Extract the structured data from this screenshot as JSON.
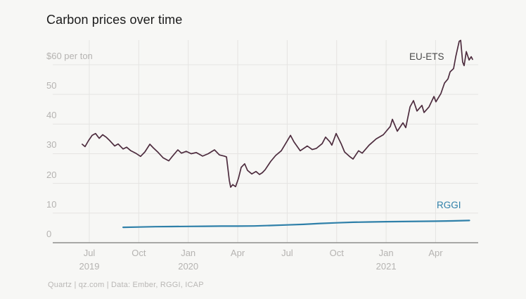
{
  "title": "Carbon prices over time",
  "footer": "Quartz | qz.com | Data: Ember, RGGI, ICAP",
  "colors": {
    "background": "#f7f7f5",
    "grid": "#e5e4e2",
    "zero_axis": "#8e8e8c",
    "tick_text": "#b5b3b1",
    "title_text": "#1b1b1b",
    "footer_text": "#b9b7b5"
  },
  "chart_data": {
    "type": "line",
    "title": "Carbon prices over time",
    "ylabel": "$ per ton",
    "xlabel": "",
    "grid": true,
    "legend_position": "inline-labels-at-line-ends",
    "x_axis": {
      "description": "t = months since Jul 2019 tick",
      "ticks": [
        {
          "t": 0,
          "month": "Jul",
          "year": "2019"
        },
        {
          "t": 3,
          "month": "Oct",
          "year": ""
        },
        {
          "t": 6,
          "month": "Jan",
          "year": "2020"
        },
        {
          "t": 9,
          "month": "Apr",
          "year": ""
        },
        {
          "t": 12,
          "month": "Jul",
          "year": ""
        },
        {
          "t": 15,
          "month": "Oct",
          "year": ""
        },
        {
          "t": 18,
          "month": "Jan",
          "year": "2021"
        },
        {
          "t": 21,
          "month": "Apr",
          "year": ""
        }
      ],
      "range_months": [
        -0.6,
        23.6
      ]
    },
    "y_axis": {
      "ticks": [
        {
          "v": 0,
          "label": "0"
        },
        {
          "v": 10,
          "label": "10"
        },
        {
          "v": 20,
          "label": "20"
        },
        {
          "v": 30,
          "label": "30"
        },
        {
          "v": 40,
          "label": "40"
        },
        {
          "v": 50,
          "label": "50"
        },
        {
          "v": 60,
          "label": "$60 per ton"
        }
      ],
      "range": [
        0,
        60
      ]
    },
    "series": [
      {
        "name": "EU-ETS",
        "color": "#4d2c3e",
        "label_color": "#4b4b4b",
        "width": 1.7,
        "points": [
          [
            -0.43,
            33.2
          ],
          [
            -0.26,
            32.4
          ],
          [
            -0.04,
            34.5
          ],
          [
            0.17,
            36.2
          ],
          [
            0.38,
            36.8
          ],
          [
            0.6,
            35.2
          ],
          [
            0.81,
            36.4
          ],
          [
            1.02,
            35.6
          ],
          [
            1.24,
            34.4
          ],
          [
            1.54,
            32.6
          ],
          [
            1.75,
            33.3
          ],
          [
            2.05,
            31.6
          ],
          [
            2.26,
            32.2
          ],
          [
            2.52,
            31.0
          ],
          [
            2.81,
            30.2
          ],
          [
            3.11,
            29.1
          ],
          [
            3.37,
            30.6
          ],
          [
            3.67,
            33.2
          ],
          [
            3.88,
            32.0
          ],
          [
            4.18,
            30.4
          ],
          [
            4.48,
            28.6
          ],
          [
            4.82,
            27.6
          ],
          [
            4.99,
            28.8
          ],
          [
            5.37,
            31.3
          ],
          [
            5.59,
            30.2
          ],
          [
            5.88,
            30.8
          ],
          [
            6.18,
            30.0
          ],
          [
            6.48,
            30.4
          ],
          [
            6.87,
            29.2
          ],
          [
            7.21,
            30.0
          ],
          [
            7.59,
            31.3
          ],
          [
            7.89,
            29.6
          ],
          [
            8.19,
            29.2
          ],
          [
            8.32,
            28.9
          ],
          [
            8.49,
            21.0
          ],
          [
            8.57,
            18.7
          ],
          [
            8.7,
            19.6
          ],
          [
            8.87,
            18.9
          ],
          [
            9.04,
            21.6
          ],
          [
            9.21,
            25.4
          ],
          [
            9.42,
            26.6
          ],
          [
            9.59,
            24.4
          ],
          [
            9.85,
            23.2
          ],
          [
            10.11,
            24.0
          ],
          [
            10.32,
            23.0
          ],
          [
            10.49,
            23.6
          ],
          [
            10.66,
            24.6
          ],
          [
            11.0,
            27.4
          ],
          [
            11.3,
            29.4
          ],
          [
            11.64,
            31.0
          ],
          [
            11.9,
            33.4
          ],
          [
            12.2,
            36.2
          ],
          [
            12.41,
            34.0
          ],
          [
            12.79,
            31.0
          ],
          [
            13.22,
            32.6
          ],
          [
            13.52,
            31.4
          ],
          [
            13.77,
            31.8
          ],
          [
            14.12,
            33.4
          ],
          [
            14.33,
            35.6
          ],
          [
            14.59,
            34.0
          ],
          [
            14.71,
            32.9
          ],
          [
            14.97,
            36.8
          ],
          [
            15.27,
            33.4
          ],
          [
            15.48,
            30.6
          ],
          [
            15.78,
            29.1
          ],
          [
            15.99,
            28.2
          ],
          [
            16.33,
            31.0
          ],
          [
            16.55,
            30.2
          ],
          [
            16.97,
            32.9
          ],
          [
            17.4,
            35.0
          ],
          [
            17.83,
            36.4
          ],
          [
            18.25,
            39.2
          ],
          [
            18.38,
            41.6
          ],
          [
            18.68,
            37.6
          ],
          [
            19.02,
            40.4
          ],
          [
            19.19,
            38.8
          ],
          [
            19.45,
            45.8
          ],
          [
            19.66,
            47.9
          ],
          [
            19.87,
            44.4
          ],
          [
            20.17,
            46.3
          ],
          [
            20.3,
            43.9
          ],
          [
            20.6,
            45.8
          ],
          [
            20.9,
            49.3
          ],
          [
            21.02,
            47.5
          ],
          [
            21.32,
            50.3
          ],
          [
            21.54,
            53.8
          ],
          [
            21.75,
            55.2
          ],
          [
            21.88,
            57.6
          ],
          [
            22.09,
            58.7
          ],
          [
            22.22,
            62.7
          ],
          [
            22.43,
            67.9
          ],
          [
            22.52,
            68.2
          ],
          [
            22.64,
            60.9
          ],
          [
            22.73,
            59.7
          ],
          [
            22.86,
            64.4
          ],
          [
            23.03,
            61.6
          ],
          [
            23.16,
            62.7
          ],
          [
            23.24,
            61.8
          ]
        ]
      },
      {
        "name": "RGGI",
        "color": "#2f80a9",
        "label_color": "#2f80a9",
        "width": 2.2,
        "points": [
          [
            2.05,
            5.2
          ],
          [
            3,
            5.3
          ],
          [
            4,
            5.4
          ],
          [
            5,
            5.45
          ],
          [
            6,
            5.5
          ],
          [
            7,
            5.55
          ],
          [
            8,
            5.6
          ],
          [
            9,
            5.6
          ],
          [
            10,
            5.65
          ],
          [
            11,
            5.8
          ],
          [
            12,
            6.0
          ],
          [
            13,
            6.2
          ],
          [
            14,
            6.5
          ],
          [
            15,
            6.7
          ],
          [
            16,
            6.9
          ],
          [
            17,
            7.0
          ],
          [
            18,
            7.1
          ],
          [
            19,
            7.15
          ],
          [
            20,
            7.2
          ],
          [
            21,
            7.25
          ],
          [
            22,
            7.35
          ],
          [
            23.05,
            7.5
          ]
        ]
      }
    ]
  }
}
